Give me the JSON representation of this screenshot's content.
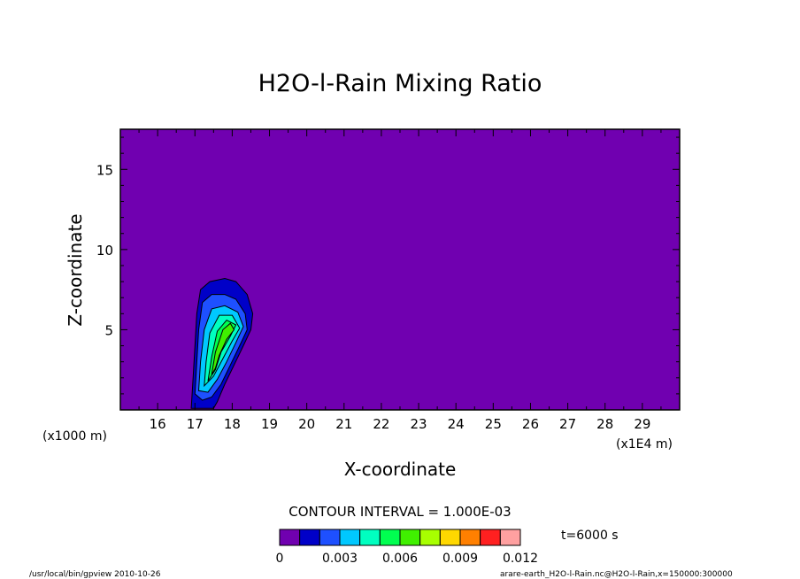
{
  "chart_data": {
    "type": "heatmap",
    "title": "H2O-l-Rain Mixing Ratio",
    "xlabel": "X-coordinate",
    "ylabel": "Z-coordinate",
    "x_unit_left": "(x1000 m)",
    "x_unit_right": "(x1E4 m)",
    "x_ticks": [
      "16",
      "17",
      "18",
      "19",
      "20",
      "21",
      "22",
      "23",
      "24",
      "25",
      "26",
      "27",
      "28",
      "29"
    ],
    "y_ticks": [
      "5",
      "10",
      "15"
    ],
    "xlim": [
      15,
      30
    ],
    "ylim": [
      0,
      17.5
    ],
    "background_color": "#7000b0",
    "contour_interval_text": "CONTOUR INTERVAL = 1.000E-03",
    "time_text": "t=6000 s",
    "colorbar": {
      "colors": [
        "#7000b0",
        "#0000c8",
        "#1e50ff",
        "#00c8ff",
        "#00ffc0",
        "#00ff50",
        "#40f000",
        "#a8ff00",
        "#ffd800",
        "#ff8000",
        "#ff2020",
        "#ffa0a0"
      ],
      "tick_labels": [
        "0",
        "0.003",
        "0.006",
        "0.009",
        "0.012"
      ],
      "tick_values": [
        0,
        0.003,
        0.006,
        0.009,
        0.012
      ]
    },
    "contours": [
      {
        "level": 0.001,
        "color": "#0000c8",
        "pts": [
          [
            16.9,
            0.1
          ],
          [
            16.95,
            2
          ],
          [
            17.0,
            4
          ],
          [
            17.05,
            6
          ],
          [
            17.15,
            7.5
          ],
          [
            17.4,
            8.0
          ],
          [
            17.8,
            8.2
          ],
          [
            18.1,
            8.0
          ],
          [
            18.4,
            7.2
          ],
          [
            18.55,
            6
          ],
          [
            18.5,
            5
          ],
          [
            18.3,
            4
          ],
          [
            18.05,
            2.8
          ],
          [
            17.8,
            1.6
          ],
          [
            17.6,
            0.5
          ],
          [
            17.5,
            0.1
          ]
        ]
      },
      {
        "level": 0.002,
        "color": "#1e50ff",
        "pts": [
          [
            17.0,
            1
          ],
          [
            17.05,
            3
          ],
          [
            17.1,
            5
          ],
          [
            17.2,
            6.7
          ],
          [
            17.45,
            7.2
          ],
          [
            17.8,
            7.2
          ],
          [
            18.1,
            6.9
          ],
          [
            18.35,
            6
          ],
          [
            18.4,
            5
          ],
          [
            18.2,
            4
          ],
          [
            17.95,
            2.8
          ],
          [
            17.7,
            1.6
          ],
          [
            17.45,
            0.8
          ],
          [
            17.2,
            0.6
          ]
        ]
      },
      {
        "level": 0.003,
        "color": "#00c8ff",
        "pts": [
          [
            17.1,
            1.2
          ],
          [
            17.15,
            3
          ],
          [
            17.25,
            5
          ],
          [
            17.45,
            6.3
          ],
          [
            17.8,
            6.5
          ],
          [
            18.15,
            6.1
          ],
          [
            18.3,
            5.2
          ],
          [
            18.1,
            4.2
          ],
          [
            17.85,
            3
          ],
          [
            17.6,
            1.9
          ],
          [
            17.35,
            1.1
          ]
        ]
      },
      {
        "level": 0.004,
        "color": "#00ffc0",
        "pts": [
          [
            17.25,
            1.5
          ],
          [
            17.3,
            3
          ],
          [
            17.4,
            4.8
          ],
          [
            17.65,
            5.9
          ],
          [
            18.0,
            5.9
          ],
          [
            18.2,
            5.1
          ],
          [
            18.0,
            4.3
          ],
          [
            17.75,
            3.2
          ],
          [
            17.5,
            2.1
          ]
        ]
      },
      {
        "level": 0.005,
        "color": "#00ff50",
        "pts": [
          [
            17.35,
            1.8
          ],
          [
            17.45,
            3.3
          ],
          [
            17.6,
            4.9
          ],
          [
            17.85,
            5.6
          ],
          [
            18.1,
            5.3
          ],
          [
            17.95,
            4.6
          ],
          [
            17.7,
            3.6
          ],
          [
            17.55,
            2.5
          ]
        ]
      },
      {
        "level": 0.006,
        "color": "#40f000",
        "pts": [
          [
            17.45,
            2.2
          ],
          [
            17.55,
            3.6
          ],
          [
            17.75,
            5.0
          ],
          [
            17.95,
            5.4
          ],
          [
            18.05,
            5.0
          ],
          [
            17.85,
            4.4
          ],
          [
            17.65,
            3.4
          ],
          [
            17.55,
            2.6
          ]
        ]
      }
    ]
  },
  "footer": {
    "left": "/usr/local/bin/gpview  2010-10-26",
    "right": "arare-earth_H2O-l-Rain.nc@H2O-l-Rain,x=150000:300000"
  }
}
